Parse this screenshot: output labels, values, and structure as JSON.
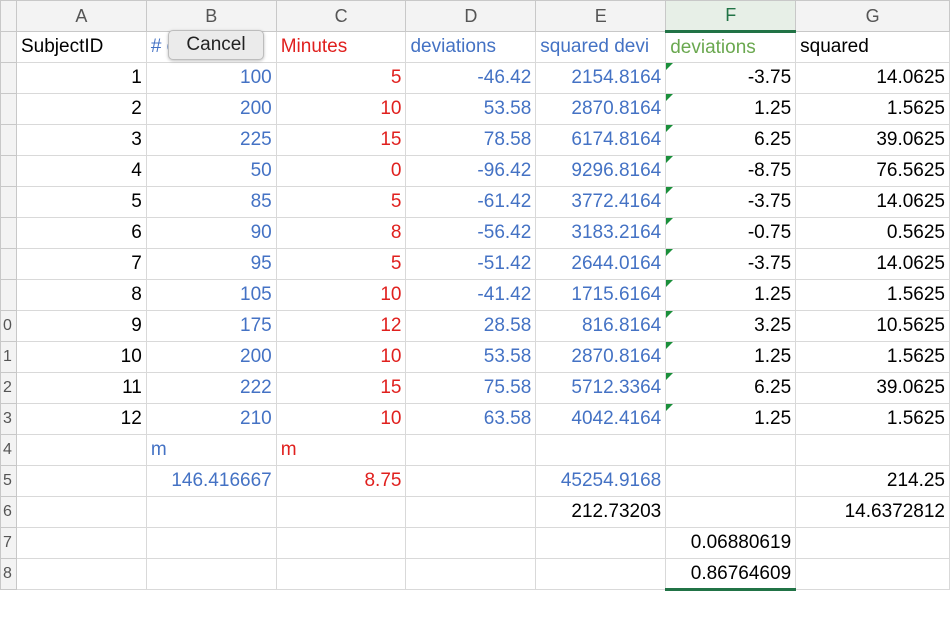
{
  "columns": [
    "A",
    "B",
    "C",
    "D",
    "E",
    "F",
    "G"
  ],
  "row_numbers": [
    "",
    "",
    "",
    "",
    "",
    "",
    "",
    "",
    "",
    "0",
    "1",
    "2",
    "3",
    "4",
    "5",
    "6",
    "7",
    "8"
  ],
  "header_row": {
    "a": "SubjectID",
    "b": "# of words",
    "c": "Minutes",
    "d": "deviations",
    "e": "squared devi",
    "f": "deviations",
    "g": "squared"
  },
  "rows": [
    {
      "a": "1",
      "b": "100",
      "c": "5",
      "d": "-46.42",
      "e": "2154.8164",
      "f": "-3.75",
      "g": "14.0625"
    },
    {
      "a": "2",
      "b": "200",
      "c": "10",
      "d": "53.58",
      "e": "2870.8164",
      "f": "1.25",
      "g": "1.5625"
    },
    {
      "a": "3",
      "b": "225",
      "c": "15",
      "d": "78.58",
      "e": "6174.8164",
      "f": "6.25",
      "g": "39.0625"
    },
    {
      "a": "4",
      "b": "50",
      "c": "0",
      "d": "-96.42",
      "e": "9296.8164",
      "f": "-8.75",
      "g": "76.5625"
    },
    {
      "a": "5",
      "b": "85",
      "c": "5",
      "d": "-61.42",
      "e": "3772.4164",
      "f": "-3.75",
      "g": "14.0625"
    },
    {
      "a": "6",
      "b": "90",
      "c": "8",
      "d": "-56.42",
      "e": "3183.2164",
      "f": "-0.75",
      "g": "0.5625"
    },
    {
      "a": "7",
      "b": "95",
      "c": "5",
      "d": "-51.42",
      "e": "2644.0164",
      "f": "-3.75",
      "g": "14.0625"
    },
    {
      "a": "8",
      "b": "105",
      "c": "10",
      "d": "-41.42",
      "e": "1715.6164",
      "f": "1.25",
      "g": "1.5625"
    },
    {
      "a": "9",
      "b": "175",
      "c": "12",
      "d": "28.58",
      "e": "816.8164",
      "f": "3.25",
      "g": "10.5625"
    },
    {
      "a": "10",
      "b": "200",
      "c": "10",
      "d": "53.58",
      "e": "2870.8164",
      "f": "1.25",
      "g": "1.5625"
    },
    {
      "a": "11",
      "b": "222",
      "c": "15",
      "d": "75.58",
      "e": "5712.3364",
      "f": "6.25",
      "g": "39.0625"
    },
    {
      "a": "12",
      "b": "210",
      "c": "10",
      "d": "63.58",
      "e": "4042.4164",
      "f": "1.25",
      "g": "1.5625"
    }
  ],
  "summary": {
    "m_label_b": "m",
    "m_label_c": "m",
    "mean_b": "146.416667",
    "mean_c": "8.75",
    "sum_e": "45254.9168",
    "sum_g": "214.25",
    "sd_e": "212.73203",
    "sd_g": "14.6372812",
    "f17": "0.06880619",
    "f18": "0.86764609"
  },
  "tooltip": {
    "label": "Cancel"
  },
  "colors": {
    "blue": "#4472c4",
    "red": "#e0201e",
    "green": "#6aa84f",
    "selection": "#217346"
  }
}
